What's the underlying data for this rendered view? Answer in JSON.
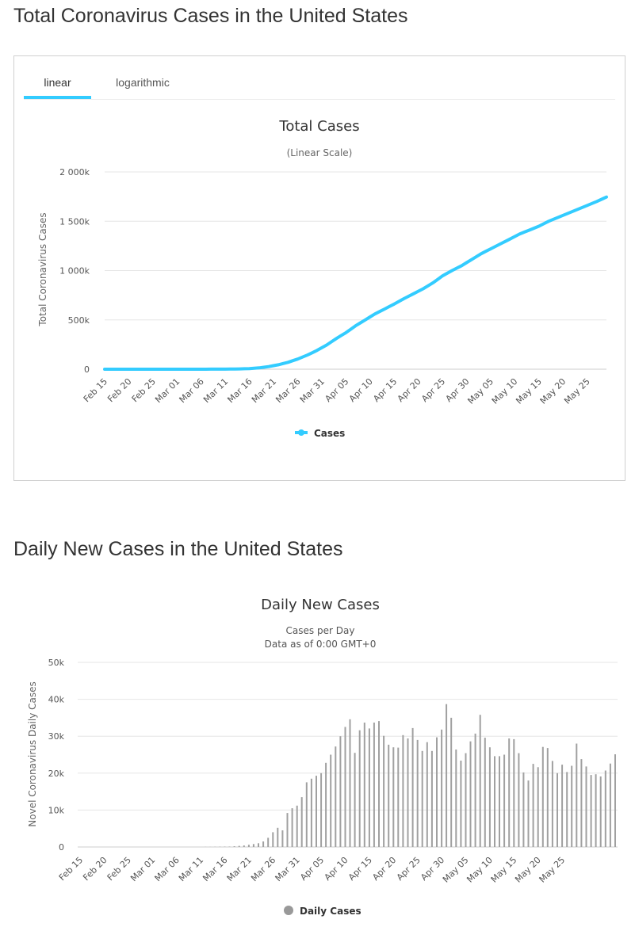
{
  "section1_title": "Total Coronavirus Cases in the United States",
  "section2_title": "Daily New Cases in the United States",
  "tabs": {
    "linear": "linear",
    "logarithmic": "logarithmic"
  },
  "colors": {
    "line": "#33ccff",
    "bars": "#a0a0a0",
    "tab_accent": "#33ccff",
    "legend_bar": "#999999"
  },
  "chart_data": [
    {
      "type": "line",
      "title": "Total Cases",
      "subtitle": "(Linear Scale)",
      "xlabel": "",
      "ylabel": "Total Coronavirus Cases",
      "ylim": [
        0,
        2000000
      ],
      "yticks": [
        0,
        500000,
        1000000,
        1500000,
        2000000
      ],
      "ytick_labels": [
        "0",
        "500k",
        "1 000k",
        "1 500k",
        "2 000k"
      ],
      "start_date": "Feb 15",
      "num_days": 105,
      "xtick_labels": [
        "Feb 15",
        "Feb 20",
        "Feb 25",
        "Mar 01",
        "Mar 06",
        "Mar 11",
        "Mar 16",
        "Mar 21",
        "Mar 26",
        "Mar 31",
        "Apr 05",
        "Apr 10",
        "Apr 15",
        "Apr 20",
        "Apr 25",
        "Apr 30",
        "May 05",
        "May 10",
        "May 15",
        "May 20",
        "May 25"
      ],
      "legend": "Cases",
      "anchors": [
        [
          0,
          15
        ],
        [
          10,
          20
        ],
        [
          20,
          100
        ],
        [
          25,
          1000
        ],
        [
          28,
          3600
        ],
        [
          30,
          6400
        ],
        [
          32,
          13700
        ],
        [
          34,
          26700
        ],
        [
          36,
          45000
        ],
        [
          38,
          70000
        ],
        [
          40,
          103000
        ],
        [
          42,
          143000
        ],
        [
          44,
          190000
        ],
        [
          46,
          245000
        ],
        [
          48,
          311000
        ],
        [
          50,
          370000
        ],
        [
          52,
          440000
        ],
        [
          54,
          500000
        ],
        [
          56,
          560000
        ],
        [
          58,
          610000
        ],
        [
          60,
          660000
        ],
        [
          62,
          715000
        ],
        [
          64,
          765000
        ],
        [
          66,
          815000
        ],
        [
          68,
          875000
        ],
        [
          70,
          945000
        ],
        [
          72,
          1000000
        ],
        [
          74,
          1050000
        ],
        [
          76,
          1110000
        ],
        [
          78,
          1170000
        ],
        [
          80,
          1220000
        ],
        [
          82,
          1270000
        ],
        [
          84,
          1320000
        ],
        [
          86,
          1370000
        ],
        [
          88,
          1410000
        ],
        [
          90,
          1450000
        ],
        [
          92,
          1500000
        ],
        [
          94,
          1540000
        ],
        [
          96,
          1580000
        ],
        [
          98,
          1620000
        ],
        [
          100,
          1660000
        ],
        [
          102,
          1700000
        ],
        [
          104,
          1745000
        ]
      ]
    },
    {
      "type": "bar",
      "title": "Daily New Cases",
      "subtitle_lines": [
        "Cases per Day",
        "Data as of 0:00 GMT+0"
      ],
      "xlabel": "",
      "ylabel": "Novel Coronavirus Daily Cases",
      "ylim": [
        0,
        50000
      ],
      "yticks": [
        0,
        10000,
        20000,
        30000,
        40000,
        50000
      ],
      "ytick_labels": [
        "0",
        "10k",
        "20k",
        "30k",
        "40k",
        "50k"
      ],
      "start_date": "Feb 15",
      "xtick_labels": [
        "Feb 15",
        "Feb 20",
        "Feb 25",
        "Mar 01",
        "Mar 06",
        "Mar 11",
        "Mar 16",
        "Mar 21",
        "Mar 26",
        "Mar 31",
        "Apr 05",
        "Apr 10",
        "Apr 15",
        "Apr 20",
        "Apr 25",
        "Apr 30",
        "May 05",
        "May 10",
        "May 15",
        "May 20",
        "May 25"
      ],
      "legend": "Daily Cases",
      "values": [
        0,
        0,
        0,
        0,
        0,
        0,
        0,
        0,
        0,
        0,
        0,
        0,
        0,
        0,
        0,
        0,
        0,
        0,
        0,
        0,
        0,
        0,
        0,
        0,
        0,
        10,
        20,
        30,
        40,
        60,
        80,
        100,
        200,
        300,
        400,
        600,
        800,
        1000,
        1500,
        2500,
        4000,
        5200,
        4500,
        9200,
        10500,
        11200,
        13500,
        17500,
        18500,
        19300,
        20000,
        22800,
        25000,
        27200,
        30000,
        32500,
        34600,
        25500,
        31600,
        33700,
        32100,
        33700,
        34100,
        30100,
        27700,
        27000,
        26900,
        30300,
        29400,
        32200,
        29000,
        26000,
        28400,
        26000,
        29700,
        31800,
        38700,
        35000,
        26400,
        23400,
        25400,
        28600,
        30700,
        35800,
        29600,
        27000,
        24600,
        24600,
        25000,
        29400,
        29200,
        25400,
        20200,
        18000,
        22500,
        21600,
        27100,
        26800,
        23300,
        20000,
        22300,
        20300,
        22000,
        28000,
        23800,
        21800,
        19500,
        19700,
        19100,
        20700,
        22600,
        25100
      ]
    }
  ]
}
